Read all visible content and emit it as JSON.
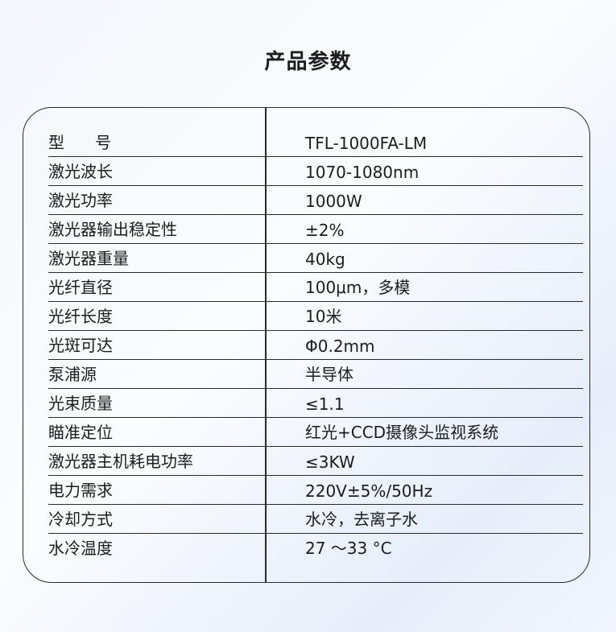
{
  "title": "产品参数",
  "rows": [
    {
      "label": "型      号",
      "value": "TFL-1000FA-LM"
    },
    {
      "label": "激光波长",
      "value": "1070-1080nm"
    },
    {
      "label": "激光功率",
      "value": "1000W"
    },
    {
      "label": "激光器输出稳定性",
      "value": "±2%"
    },
    {
      "label": "激光器重量",
      "value": "40kg"
    },
    {
      "label": "光纤直径",
      "value": "100μm，多模"
    },
    {
      "label": "光纤长度",
      "value": "10米"
    },
    {
      "label": "光斑可达",
      "value": "Φ0.2mm"
    },
    {
      "label": "泵浦源",
      "value": "半导体"
    },
    {
      "label": "光束质量",
      "value": "≤1.1"
    },
    {
      "label": "瞄准定位",
      "value": "红光+CCD摄像头监视系统"
    },
    {
      "label": "激光器主机耗电功率",
      "value": "≤3KW"
    },
    {
      "label": "电力需求",
      "value": "220V±5%/50Hz"
    },
    {
      "label": "冷却方式",
      "value": "水冷，去离子水"
    },
    {
      "label": "水冷温度",
      "value": "27 ～33 °C"
    }
  ]
}
